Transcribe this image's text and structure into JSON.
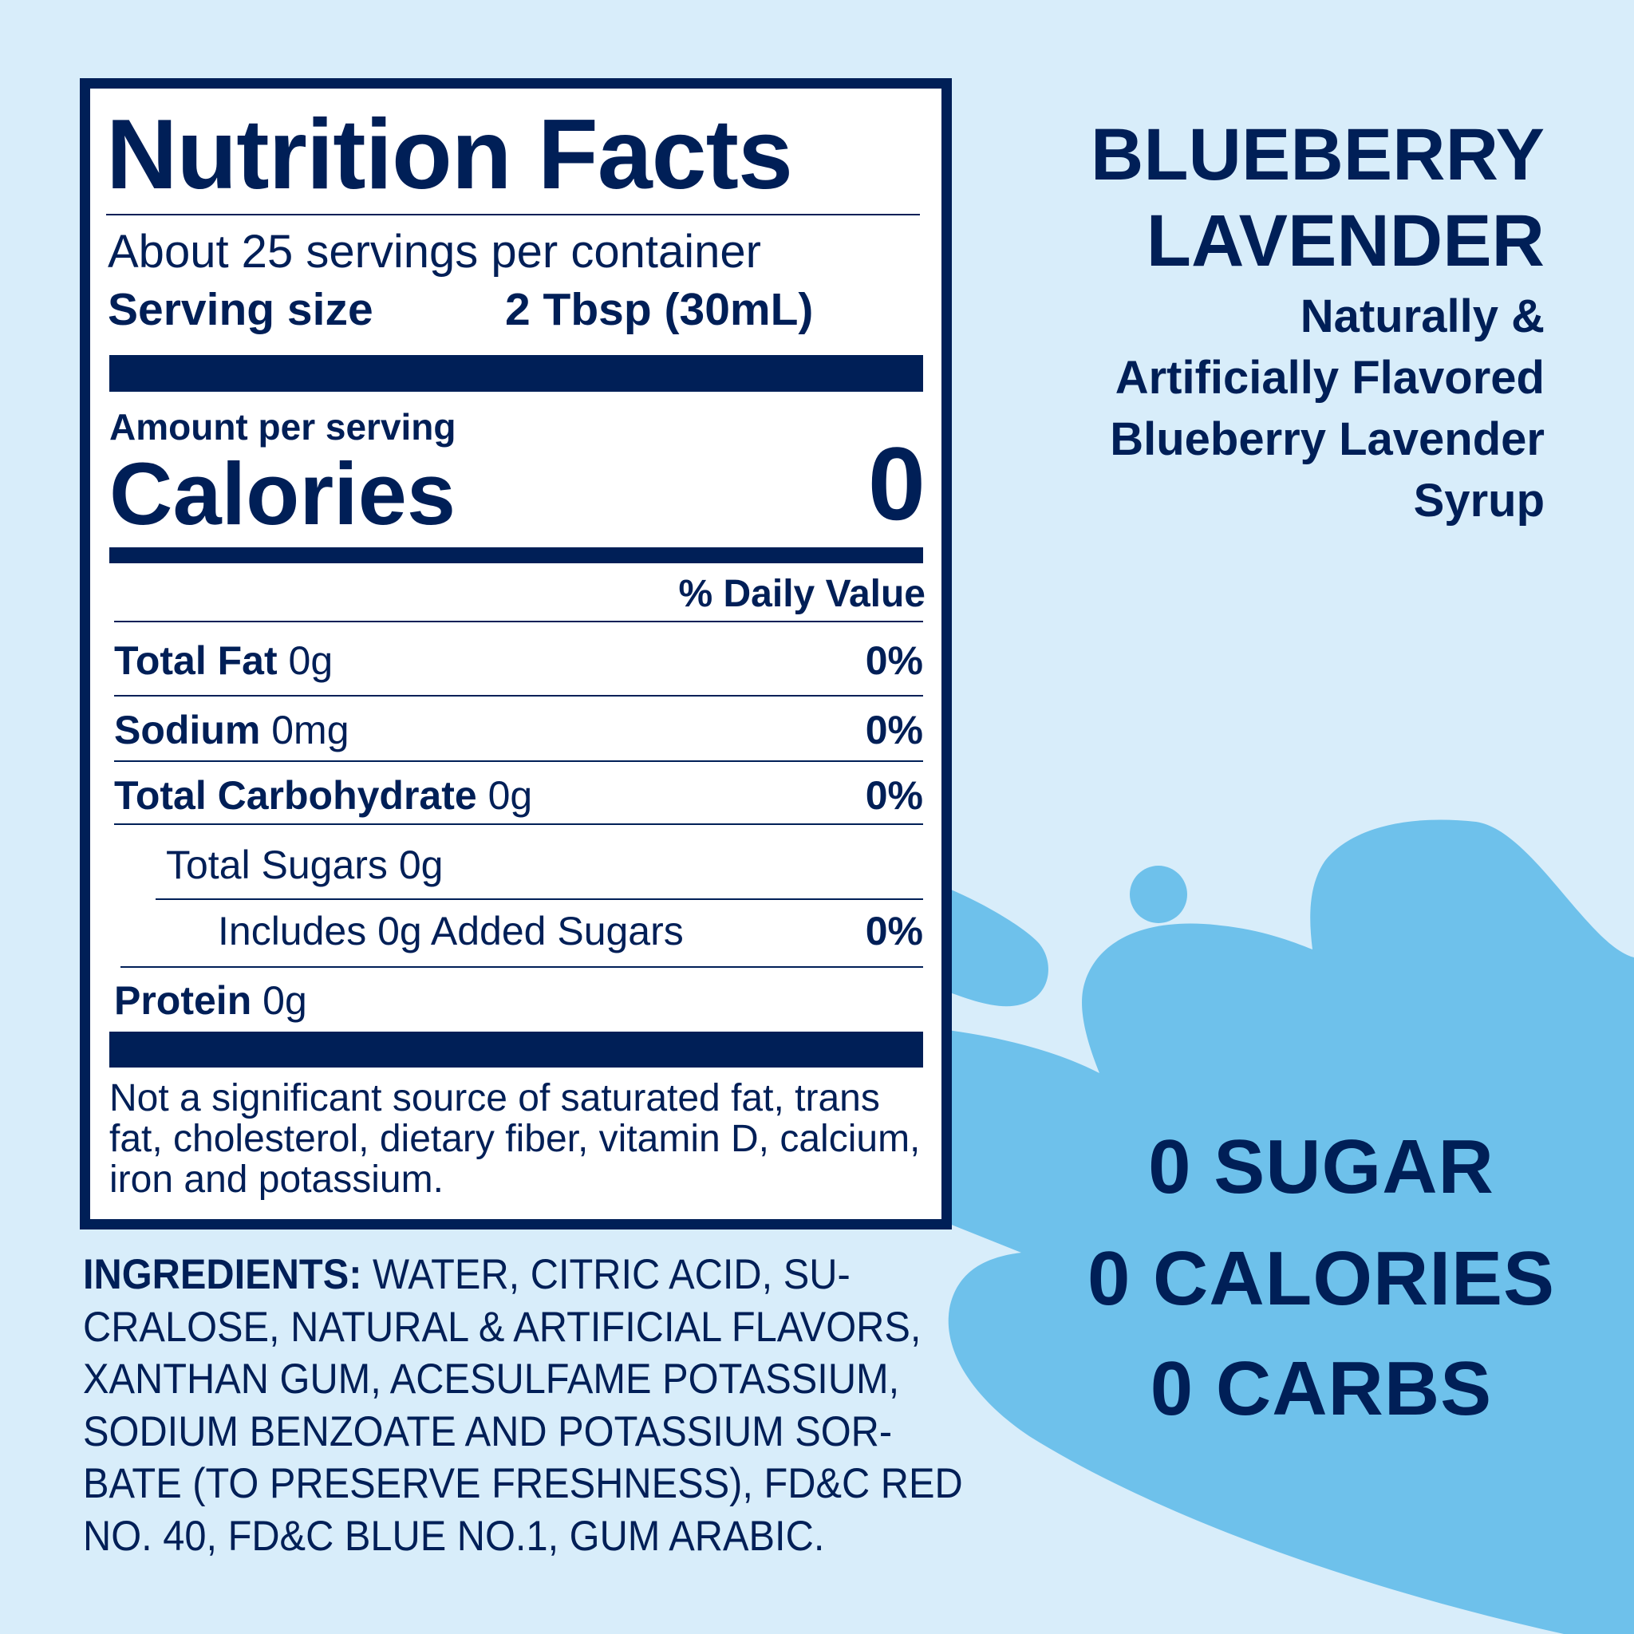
{
  "colors": {
    "background": "#d8edfa",
    "splash": "#6ec1eb",
    "navy": "#001f57"
  },
  "label": {
    "title": "Nutrition Facts",
    "servings": "About 25 servings per container",
    "serving_size_label": "Serving size",
    "serving_size_value": "2 Tbsp (30mL)",
    "amount_per_serving": "Amount per serving",
    "calories_label": "Calories",
    "calories_value": "0",
    "daily_value_header": "% Daily Value",
    "rows": [
      {
        "name": "Total Fat",
        "amount": "0g",
        "dv": "0%"
      },
      {
        "name": "Sodium",
        "amount": "0mg",
        "dv": "0%"
      },
      {
        "name": "Total Carbohydrate",
        "amount": "0g",
        "dv": "0%"
      },
      {
        "name": "",
        "amount": "Total Sugars 0g",
        "dv": ""
      },
      {
        "name": "",
        "amount": "Includes 0g Added Sugars",
        "dv": "0%"
      },
      {
        "name": "Protein",
        "amount": "0g",
        "dv": ""
      }
    ],
    "footnote": "Not a significant source of saturated fat, trans fat, cholesterol, dietary fiber, vitamin D, calcium, iron and potassium."
  },
  "ingredients": {
    "label": "INGREDIENTS:",
    "lines": [
      " WATER, CITRIC ACID, SU-",
      "CRALOSE, NATURAL & ARTIFICIAL FLAVORS,",
      "XANTHAN GUM, ACESULFAME POTASSIUM,",
      "SODIUM BENZOATE AND POTASSIUM SOR-",
      "BATE (TO PRESERVE FRESHNESS), FD&C RED",
      "NO. 40, FD&C BLUE NO.1, GUM ARABIC."
    ]
  },
  "product": {
    "name_line1": "BLUEBERRY",
    "name_line2": "LAVENDER",
    "desc": [
      "Naturally &",
      "Artificially Flavored",
      "Blueberry Lavender",
      "Syrup"
    ]
  },
  "claims": [
    "0 SUGAR",
    "0 CALORIES",
    "0 CARBS"
  ]
}
